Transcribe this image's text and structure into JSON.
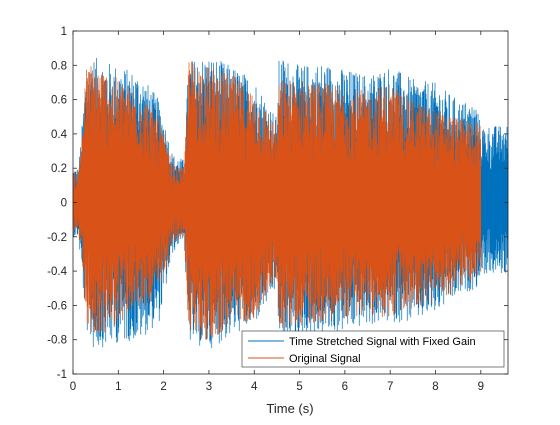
{
  "chart_data": {
    "type": "line",
    "title": "",
    "xlabel": "Time (s)",
    "ylabel": "",
    "xlim": [
      0,
      9.6
    ],
    "ylim": [
      -1,
      1
    ],
    "xticks": [
      0,
      1,
      2,
      3,
      4,
      5,
      6,
      7,
      8,
      9
    ],
    "yticks": [
      -1,
      -0.8,
      -0.6,
      -0.4,
      -0.2,
      0,
      0.2,
      0.4,
      0.6,
      0.8,
      1
    ],
    "xtick_labels": [
      "0",
      "1",
      "2",
      "3",
      "4",
      "5",
      "6",
      "7",
      "8",
      "9"
    ],
    "ytick_labels": [
      "-1",
      "-0.8",
      "-0.6",
      "-0.4",
      "-0.2",
      "0",
      "0.2",
      "0.4",
      "0.6",
      "0.8",
      "1"
    ],
    "grid": false,
    "legend_position": "bottom-right",
    "series": [
      {
        "name": "Time Stretched Signal with Fixed Gain",
        "color": "#0072BD",
        "x_range": [
          0,
          9.6
        ],
        "envelope": {
          "t": [
            0,
            0.12,
            0.3,
            0.45,
            1.0,
            1.5,
            1.9,
            2.2,
            2.45,
            2.55,
            3.0,
            3.5,
            4.0,
            4.5,
            4.55,
            5.0,
            5.5,
            6.0,
            6.5,
            7.0,
            7.5,
            8.0,
            8.5,
            8.9,
            9.0,
            9.6
          ],
          "upper": [
            0.2,
            0.2,
            0.78,
            0.85,
            0.8,
            0.75,
            0.6,
            0.28,
            0.25,
            0.83,
            0.86,
            0.8,
            0.72,
            0.5,
            0.86,
            0.8,
            0.82,
            0.78,
            0.75,
            0.8,
            0.72,
            0.7,
            0.6,
            0.58,
            0.45,
            0.45
          ],
          "lower": [
            -0.2,
            -0.2,
            -0.75,
            -0.86,
            -0.82,
            -0.8,
            -0.7,
            -0.3,
            -0.2,
            -0.82,
            -0.86,
            -0.78,
            -0.72,
            -0.5,
            -0.82,
            -0.8,
            -0.78,
            -0.75,
            -0.72,
            -0.7,
            -0.7,
            -0.65,
            -0.55,
            -0.5,
            -0.42,
            -0.42
          ]
        }
      },
      {
        "name": "Original Signal",
        "color": "#D95319",
        "x_range": [
          0,
          9.0
        ],
        "envelope": {
          "t": [
            0,
            0.12,
            0.3,
            0.45,
            1.0,
            1.5,
            1.9,
            2.2,
            2.45,
            2.55,
            3.0,
            3.5,
            4.0,
            4.5,
            4.55,
            5.0,
            5.5,
            6.0,
            6.5,
            7.0,
            7.5,
            8.0,
            8.5,
            8.9,
            9.0
          ],
          "upper": [
            0.18,
            0.18,
            0.8,
            0.82,
            0.72,
            0.65,
            0.5,
            0.22,
            0.2,
            0.84,
            0.8,
            0.75,
            0.65,
            0.45,
            0.72,
            0.72,
            0.7,
            0.68,
            0.65,
            0.7,
            0.6,
            0.55,
            0.5,
            0.48,
            0.45
          ],
          "lower": [
            -0.18,
            -0.18,
            -0.7,
            -0.82,
            -0.7,
            -0.62,
            -0.55,
            -0.25,
            -0.2,
            -0.75,
            -0.82,
            -0.72,
            -0.68,
            -0.45,
            -0.75,
            -0.72,
            -0.7,
            -0.68,
            -0.66,
            -0.68,
            -0.62,
            -0.6,
            -0.5,
            -0.45,
            -0.42
          ]
        }
      }
    ]
  }
}
